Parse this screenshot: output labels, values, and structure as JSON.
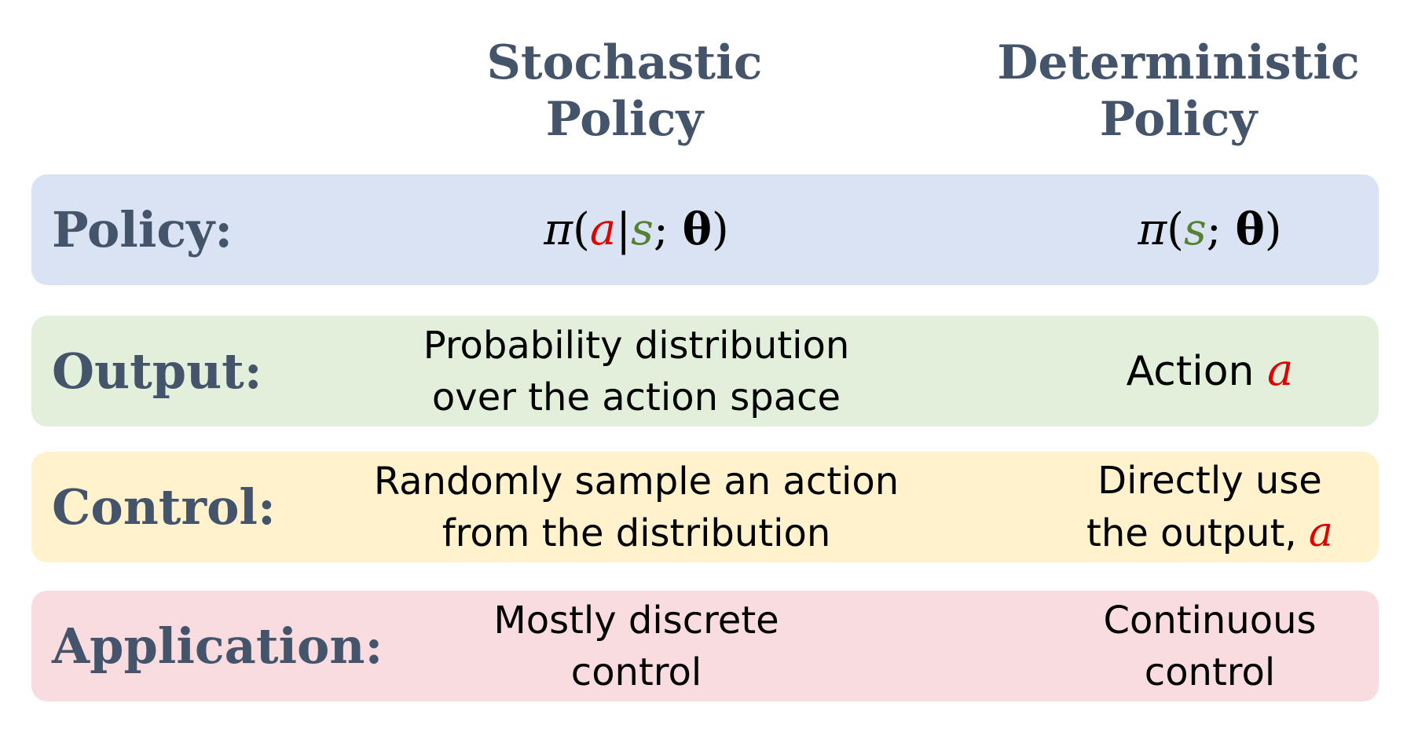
{
  "headers": {
    "stochastic": [
      "Stochastic",
      "Policy"
    ],
    "deterministic": [
      "Deterministic",
      "Policy"
    ]
  },
  "rows": {
    "policy": {
      "label": "Policy:",
      "color": "#dae3f3",
      "stochastic_formula": {
        "pi": "π",
        "open": "(",
        "a": "a",
        "bar": "|",
        "s": "s",
        "semi": "; ",
        "theta": "θ",
        "close": ")"
      },
      "deterministic_formula": {
        "pi": "π",
        "open": "(",
        "s": "s",
        "semi": "; ",
        "theta": "θ",
        "close": ")"
      }
    },
    "output": {
      "label": "Output:",
      "color": "#e2efda",
      "stochastic": [
        "Probability distribution",
        "over the action space"
      ],
      "deterministic_text": "Action ",
      "deterministic_var": "a"
    },
    "control": {
      "label": "Control:",
      "color": "#fff2cc",
      "stochastic": [
        "Randomly sample an action",
        "from the distribution"
      ],
      "deterministic_line1": "Directly use",
      "deterministic_line2": "the output, ",
      "deterministic_var": "a"
    },
    "application": {
      "label": "Application:",
      "color": "#f8dcdf",
      "stochastic": [
        "Mostly discrete",
        "control"
      ],
      "deterministic": [
        "Continuous",
        "control"
      ]
    }
  },
  "colors": {
    "header_text": "#44546a",
    "action_var": "#e00000",
    "state_var": "#548235"
  }
}
